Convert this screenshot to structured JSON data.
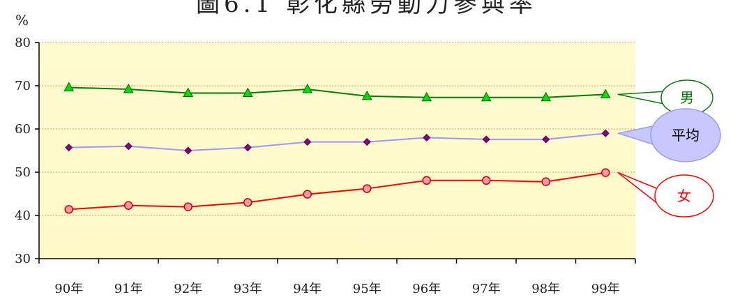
{
  "chart_data": {
    "type": "line",
    "title": "圖6.1 彰化縣勞動力參與率",
    "ylabel": "%",
    "ylim": [
      30,
      80
    ],
    "yticks": [
      "30",
      "40",
      "50",
      "60",
      "70",
      "80"
    ],
    "categories": [
      "90年",
      "91年",
      "92年",
      "93年",
      "94年",
      "95年",
      "96年",
      "97年",
      "98年",
      "99年"
    ],
    "grid": "horizontal, dotted",
    "series": [
      {
        "name": "男",
        "color": "#0a7a0a",
        "marker": "triangle",
        "marker_color": "#00dd00",
        "values": [
          69.6,
          69.2,
          68.3,
          68.3,
          69.2,
          67.6,
          67.3,
          67.3,
          67.3,
          68.0
        ]
      },
      {
        "name": "平均",
        "color": "#9999ff",
        "marker": "diamond",
        "marker_color": "#800080",
        "values": [
          55.7,
          56.0,
          55.0,
          55.7,
          57.0,
          57.0,
          58.0,
          57.6,
          57.6,
          59.0
        ]
      },
      {
        "name": "女",
        "color": "#ff0000",
        "marker": "circle",
        "marker_color": "#ff99aa",
        "values": [
          41.4,
          42.3,
          42.0,
          43.0,
          44.9,
          46.2,
          48.1,
          48.1,
          47.8,
          49.9
        ]
      }
    ]
  }
}
